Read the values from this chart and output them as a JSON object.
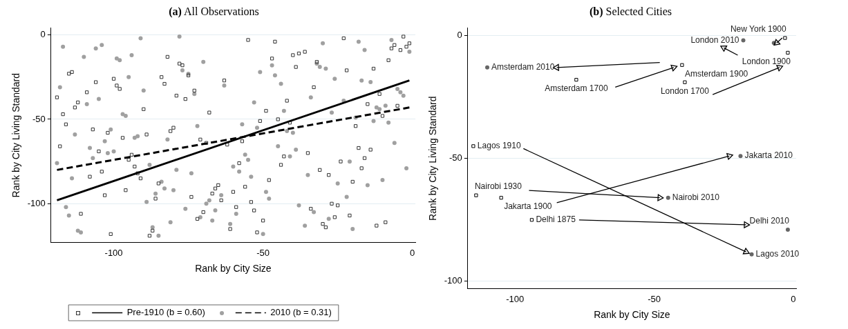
{
  "chart_data": [
    {
      "type": "scatter",
      "title": "(a) All Observations",
      "xlabel": "Rank by City Size",
      "ylabel": "Rank by City Living Standard",
      "xlim": [
        -121,
        1
      ],
      "ylim": [
        -123,
        4
      ],
      "xticks": [
        -100,
        -50,
        0
      ],
      "yticks": [
        -100,
        -50,
        0
      ],
      "grid": "y",
      "legend": "bottom",
      "series": [
        {
          "type": "scatter",
          "marker": "square",
          "color": "#333333",
          "x": [
            -119,
            -118,
            -117,
            -116,
            -115,
            -114,
            -113,
            -112,
            -111,
            -109,
            -108,
            -107,
            -106,
            -105,
            -104,
            -103,
            -102,
            -101,
            -100,
            -99,
            -98,
            -97,
            -96,
            -95,
            -94,
            -93,
            -92,
            -91,
            -90,
            -89,
            -88,
            -87,
            -86,
            -85,
            -84,
            -83,
            -82,
            -81,
            -80,
            -79,
            -78,
            -77,
            -76,
            -75,
            -74,
            -73,
            -72,
            -71,
            -70,
            -69,
            -68,
            -67,
            -66,
            -65,
            -64,
            -63,
            -62,
            -61,
            -60,
            -59,
            -58,
            -57,
            -56,
            -55,
            -54,
            -53,
            -52,
            -51,
            -50,
            -49,
            -48,
            -47,
            -46,
            -45,
            -44,
            -43,
            -42,
            -41,
            -40,
            -39,
            -38,
            -36,
            -35,
            -34,
            -33,
            -32,
            -31,
            -30,
            -29,
            -28,
            -27,
            -26,
            -25,
            -24,
            -23,
            -22,
            -21,
            -20,
            -19,
            -18,
            -17,
            -16,
            -15,
            -14,
            -13,
            -12,
            -11,
            -10,
            -9,
            -8,
            -7,
            -6,
            -5,
            -4,
            -3,
            -2,
            -1
          ],
          "values": [
            -37,
            -66,
            -47,
            -53,
            -23,
            -22,
            -43,
            -40,
            -106,
            -34,
            -84,
            -56,
            -28,
            -69,
            -81,
            -95,
            -58,
            -118,
            -26,
            -30,
            -32,
            -61,
            -92,
            -74,
            -71,
            -78,
            -82,
            -85,
            -44,
            -59,
            -119,
            -116,
            -97,
            -88,
            -25,
            -29,
            -13,
            -57,
            -55,
            -36,
            -17,
            -18,
            -38,
            -24,
            -96,
            -33,
            -109,
            -62,
            -105,
            -64,
            -46,
            -94,
            -91,
            -89,
            -98,
            -27,
            -65,
            -115,
            -93,
            -102,
            -76,
            -63,
            -90,
            -3,
            -99,
            -104,
            -117,
            -51,
            -110,
            -45,
            -86,
            -14,
            -4,
            -50,
            -77,
            -72,
            -39,
            -52,
            -12,
            -19,
            -11,
            -10,
            -70,
            -103,
            -31,
            -16,
            -80,
            -112,
            -114,
            -83,
            -100,
            -108,
            -101,
            -75,
            -2,
            -21,
            -107,
            -87,
            -54,
            -67,
            -79,
            -73,
            -41,
            -68,
            -20,
            -113,
            -35,
            -48,
            -111,
            -15,
            -8,
            -6,
            -42,
            -9,
            -1,
            -7,
            -5
          ]
        },
        {
          "type": "line",
          "name": "Pre-1910 (b = 0.60)",
          "color": "#000000",
          "line_style": "solid",
          "x": [
            -119,
            -1
          ],
          "values": [
            -98,
            -27
          ]
        },
        {
          "type": "scatter",
          "marker": "circle",
          "color": "#a0a0a0",
          "x": [
            -119,
            -118,
            -117,
            -116,
            -115,
            -114,
            -113,
            -112,
            -111,
            -110,
            -109,
            -108,
            -107,
            -106,
            -105,
            -104,
            -103,
            -102,
            -101,
            -100,
            -99,
            -98,
            -97,
            -96,
            -95,
            -94,
            -93,
            -92,
            -91,
            -90,
            -89,
            -88,
            -87,
            -86,
            -85,
            -84,
            -83,
            -82,
            -81,
            -80,
            -79,
            -78,
            -77,
            -76,
            -75,
            -74,
            -73,
            -72,
            -71,
            -70,
            -69,
            -68,
            -67,
            -66,
            -64,
            -63,
            -61,
            -60,
            -59,
            -58,
            -57,
            -56,
            -55,
            -54,
            -53,
            -52,
            -51,
            -50,
            -49,
            -48,
            -47,
            -46,
            -45,
            -44,
            -43,
            -42,
            -41,
            -40,
            -39,
            -38,
            -36,
            -35,
            -34,
            -33,
            -32,
            -31,
            -30,
            -29,
            -28,
            -27,
            -26,
            -25,
            -23,
            -22,
            -21,
            -20,
            -19,
            -18,
            -17,
            -16,
            -15,
            -14,
            -13,
            -12,
            -11,
            -10,
            -9,
            -8,
            -7,
            -6,
            -5,
            -4,
            -3,
            -2,
            -1
          ],
          "values": [
            -76,
            -31,
            -7,
            -102,
            -107,
            -85,
            -59,
            -116,
            -117,
            -13,
            -41,
            -67,
            -73,
            -8,
            -38,
            -6,
            -63,
            -70,
            -56,
            -69,
            -14,
            -15,
            -47,
            -48,
            -25,
            -12,
            -61,
            -60,
            -2,
            -33,
            -99,
            -77,
            -114,
            -94,
            -119,
            -87,
            -91,
            -62,
            -111,
            -92,
            -80,
            -1,
            -21,
            -103,
            -23,
            -82,
            -35,
            -54,
            -108,
            -16,
            -100,
            -98,
            -110,
            -104,
            -95,
            -30,
            -112,
            -78,
            -106,
            -81,
            -53,
            -71,
            -74,
            -84,
            -40,
            -55,
            -22,
            -118,
            -93,
            -97,
            -18,
            -24,
            -66,
            -29,
            -45,
            -57,
            -72,
            -58,
            -68,
            -101,
            -113,
            -83,
            -37,
            -105,
            -17,
            -19,
            -5,
            -20,
            -109,
            -46,
            -26,
            -88,
            -39,
            -96,
            -75,
            -115,
            -49,
            -4,
            -27,
            -9,
            -89,
            -28,
            -51,
            -43,
            -44,
            -86,
            -42,
            -52,
            -3,
            -64,
            -32,
            -34,
            -36,
            -79,
            -10
          ]
        },
        {
          "type": "line",
          "name": "2010 (b = 0.31)",
          "color": "#000000",
          "line_style": "dashed",
          "x": [
            -119,
            -1
          ],
          "values": [
            -80,
            -43
          ]
        }
      ]
    },
    {
      "type": "scatter",
      "title": "(b) Selected Cities",
      "xlabel": "Rank by City Size",
      "ylabel": "Rank by City Living Standard",
      "xlim": [
        -117,
        1
      ],
      "ylim": [
        -103,
        3
      ],
      "xticks": [
        -100,
        -50,
        0
      ],
      "yticks": [
        -100,
        -50,
        0
      ],
      "grid": "y",
      "series": [
        {
          "type": "scatter",
          "marker": "square",
          "color": "#000000",
          "x": [
            -78,
            -40,
            -39,
            -3,
            -2,
            -115,
            -114,
            -105,
            -94
          ],
          "values": [
            -18,
            -12,
            -19,
            -1,
            -7,
            -45,
            -65,
            -66,
            -75
          ]
        },
        {
          "type": "scatter",
          "marker": "circle",
          "color": "#666666",
          "x": [
            -110,
            -18,
            -7,
            -19,
            -45,
            -2,
            -15
          ],
          "values": [
            -13,
            -2,
            -3,
            -49,
            -66,
            -79,
            -89
          ]
        },
        {
          "type": "line",
          "color": "#000000",
          "x": [
            -48,
            -85
          ],
          "values": [
            -11,
            -13
          ]
        },
        {
          "type": "line",
          "color": "#000000",
          "x": [
            -64,
            -43
          ],
          "values": [
            -21,
            -13
          ]
        },
        {
          "type": "line",
          "color": "#000000",
          "x": [
            -29,
            -5
          ],
          "values": [
            -24,
            -13
          ]
        },
        {
          "type": "line",
          "color": "#000000",
          "x": [
            -20,
            -25
          ],
          "values": [
            -8,
            -5
          ]
        },
        {
          "type": "line",
          "color": "#000000",
          "x": [
            -4,
            -6
          ],
          "values": [
            -1,
            -3
          ]
        },
        {
          "type": "line",
          "color": "#000000",
          "x": [
            -97,
            -17
          ],
          "values": [
            -46,
            -88
          ]
        },
        {
          "type": "line",
          "color": "#000000",
          "x": [
            -85,
            -23
          ],
          "values": [
            -68,
            -49
          ]
        },
        {
          "type": "line",
          "color": "#000000",
          "x": [
            -95,
            -48
          ],
          "values": [
            -63,
            -66
          ]
        },
        {
          "type": "line",
          "color": "#000000",
          "x": [
            -77,
            -17
          ],
          "values": [
            -75,
            -77
          ]
        }
      ],
      "annotations": [
        {
          "text": "Amsterdam 2010",
          "x": -110,
          "y": -13
        },
        {
          "text": "Amsterdam 1700",
          "x": -78,
          "y": -18
        },
        {
          "text": "Amsterdam 1900",
          "x": -40,
          "y": -12
        },
        {
          "text": "London 1700",
          "x": -39,
          "y": -19
        },
        {
          "text": "London 2010",
          "x": -18,
          "y": -2
        },
        {
          "text": "New York 1900",
          "x": -3,
          "y": -1
        },
        {
          "text": "London 1900",
          "x": -2,
          "y": -7
        },
        {
          "text": "Lagos 1910",
          "x": -115,
          "y": -45
        },
        {
          "text": "Jakarta 2010",
          "x": -19,
          "y": -49
        },
        {
          "text": "Nairobi 1930",
          "x": -114,
          "y": -65
        },
        {
          "text": "Jakarta 1900",
          "x": -105,
          "y": -66
        },
        {
          "text": "Nairobi 2010",
          "x": -45,
          "y": -66
        },
        {
          "text": "Delhi 1875",
          "x": -94,
          "y": -75
        },
        {
          "text": "Delhi 2010",
          "x": -2,
          "y": -79
        },
        {
          "text": "Lagos 2010",
          "x": -15,
          "y": -89
        }
      ]
    }
  ]
}
